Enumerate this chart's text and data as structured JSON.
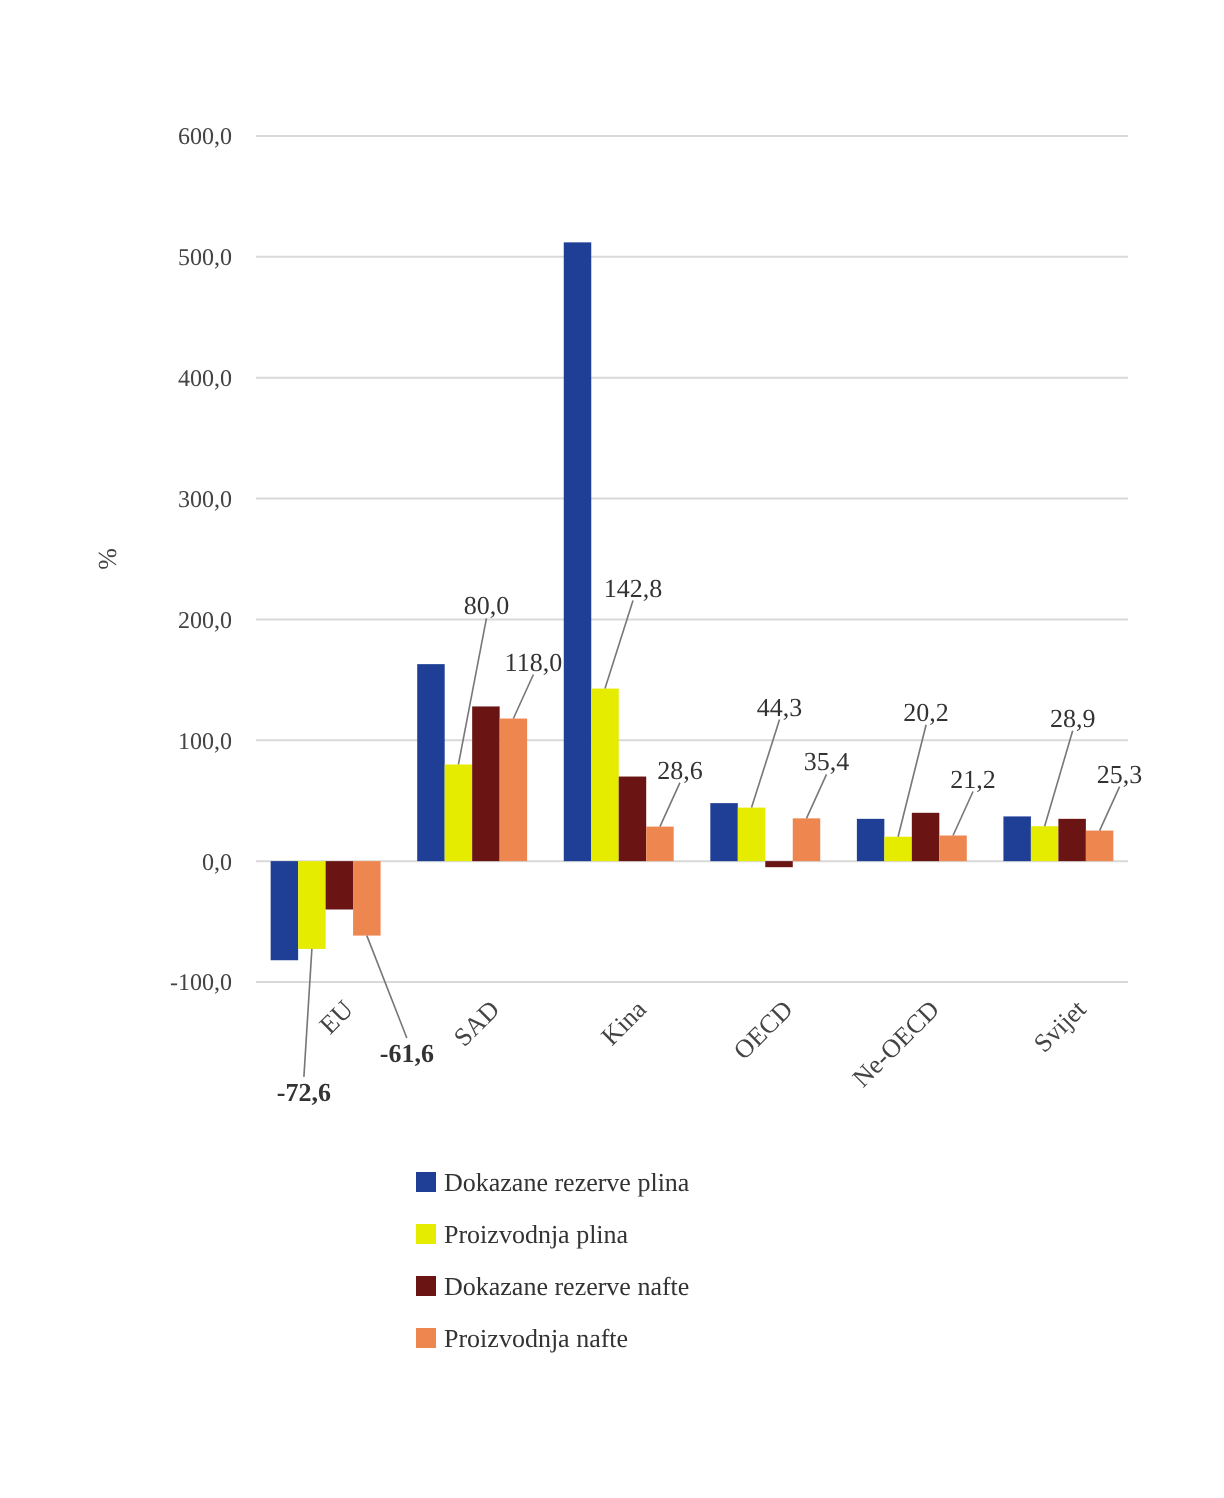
{
  "chart_data": {
    "type": "bar",
    "ylabel": "%",
    "categories": [
      "EU",
      "SAD",
      "Kina",
      "OECD",
      "Ne-OECD",
      "Svijet"
    ],
    "series": [
      {
        "name": "Dokazane rezerve plina",
        "color": "#1f3e96",
        "values": [
          -82,
          163,
          512,
          48,
          35,
          37
        ]
      },
      {
        "name": "Proizvodnja plina",
        "color": "#e6ec00",
        "values": [
          -72.6,
          80.0,
          142.8,
          44.3,
          20.2,
          28.9
        ],
        "value_labels": [
          "-72,6",
          "80,0",
          "142,8",
          "44,3",
          "20,2",
          "28,9"
        ]
      },
      {
        "name": "Dokazane rezerve nafte",
        "color": "#6b1414",
        "values": [
          -40,
          128,
          70,
          -5,
          40,
          35
        ]
      },
      {
        "name": "Proizvodnja nafte",
        "color": "#ee8650",
        "values": [
          -61.6,
          118.0,
          28.6,
          35.4,
          21.2,
          25.3
        ],
        "value_labels": [
          "-61,6",
          "118,0",
          "28,6",
          "35,4",
          "21,2",
          "25,3"
        ]
      }
    ],
    "ylim": [
      -100,
      600
    ],
    "yticks": [
      {
        "value": -100,
        "label": "-100,0"
      },
      {
        "value": 0,
        "label": "0,0"
      },
      {
        "value": 100,
        "label": "100,0"
      },
      {
        "value": 200,
        "label": "200,0"
      },
      {
        "value": 300,
        "label": "300,0"
      },
      {
        "value": 400,
        "label": "400,0"
      },
      {
        "value": 500,
        "label": "500,0"
      },
      {
        "value": 600,
        "label": "600,0"
      }
    ],
    "grid": "y",
    "legend": "bottom"
  }
}
